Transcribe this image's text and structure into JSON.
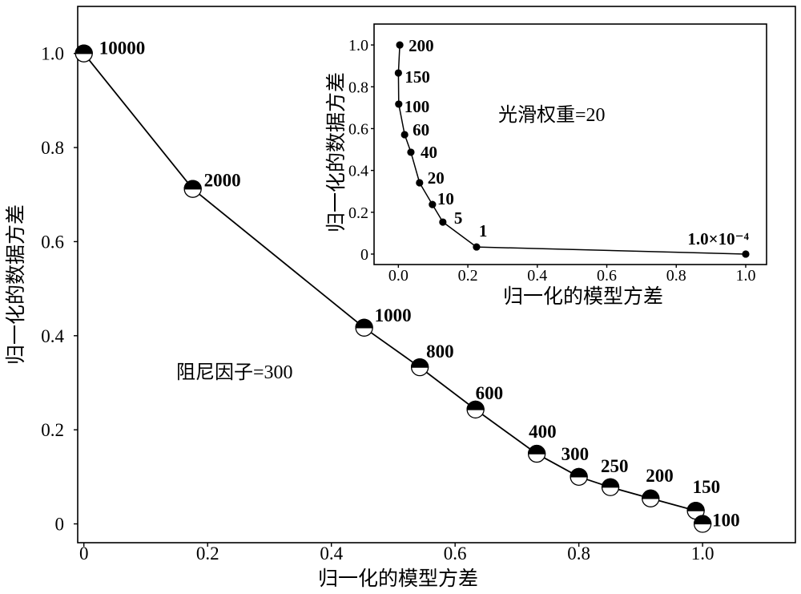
{
  "chart_data": [
    {
      "type": "line",
      "xlabel": "归一化的模型方差",
      "ylabel": "归一化的数据方差",
      "annotation": "阻尼因子=300",
      "xlim": [
        -0.01,
        1.15
      ],
      "ylim": [
        -0.04,
        1.1
      ],
      "xticks": [
        0,
        0.2,
        0.4,
        0.6,
        0.8,
        1.0
      ],
      "xtick_labels": [
        "0",
        "0.2",
        "0.4",
        "0.6",
        "0.8",
        "1.0"
      ],
      "yticks": [
        0,
        0.2,
        0.4,
        0.6,
        0.8,
        1.0
      ],
      "ytick_labels": [
        "0",
        "0.2",
        "0.4",
        "0.6",
        "0.8",
        "1.0"
      ],
      "grid": false,
      "colors": {
        "line": "#000000",
        "marker_upper": "#000000",
        "marker_lower": "#ffffff"
      },
      "points": [
        {
          "label": "10000",
          "x": 0.0,
          "y": 1.0
        },
        {
          "label": "2000",
          "x": 0.176,
          "y": 0.712
        },
        {
          "label": "1000",
          "x": 0.453,
          "y": 0.417
        },
        {
          "label": "800",
          "x": 0.543,
          "y": 0.333
        },
        {
          "label": "600",
          "x": 0.633,
          "y": 0.243
        },
        {
          "label": "400",
          "x": 0.732,
          "y": 0.149
        },
        {
          "label": "300",
          "x": 0.8,
          "y": 0.1
        },
        {
          "label": "250",
          "x": 0.851,
          "y": 0.078
        },
        {
          "label": "200",
          "x": 0.916,
          "y": 0.054
        },
        {
          "label": "150",
          "x": 0.989,
          "y": 0.028
        },
        {
          "label": "100",
          "x": 1.0,
          "y": 0.0
        }
      ]
    },
    {
      "type": "line",
      "xlabel": "归一化的模型方差",
      "ylabel": "归一化的数据方差",
      "annotation": "光滑权重=20",
      "xlim": [
        -0.07,
        1.06
      ],
      "ylim": [
        -0.05,
        1.1
      ],
      "xticks": [
        0,
        0.2,
        0.4,
        0.6,
        0.8,
        1.0
      ],
      "xtick_labels": [
        "0.0",
        "0.2",
        "0.4",
        "0.6",
        "0.8",
        "1.0"
      ],
      "yticks": [
        0,
        0.2,
        0.4,
        0.6,
        0.8,
        1.0
      ],
      "ytick_labels": [
        "0",
        "0.2",
        "0.4",
        "0.6",
        "0.8",
        "1.0"
      ],
      "grid": false,
      "colors": {
        "line": "#000000",
        "marker": "#000000"
      },
      "points": [
        {
          "label": "200",
          "x": 0.004,
          "y": 1.0
        },
        {
          "label": "150",
          "x": 0.0,
          "y": 0.866
        },
        {
          "label": "100",
          "x": 0.001,
          "y": 0.717
        },
        {
          "label": "60",
          "x": 0.018,
          "y": 0.571
        },
        {
          "label": "40",
          "x": 0.036,
          "y": 0.487
        },
        {
          "label": "20",
          "x": 0.061,
          "y": 0.341
        },
        {
          "label": "10",
          "x": 0.098,
          "y": 0.237
        },
        {
          "label": "5",
          "x": 0.128,
          "y": 0.153
        },
        {
          "label": "1",
          "x": 0.225,
          "y": 0.034
        },
        {
          "label": "1.0×10⁻⁴",
          "x": 1.0,
          "y": 0.0
        }
      ]
    }
  ]
}
